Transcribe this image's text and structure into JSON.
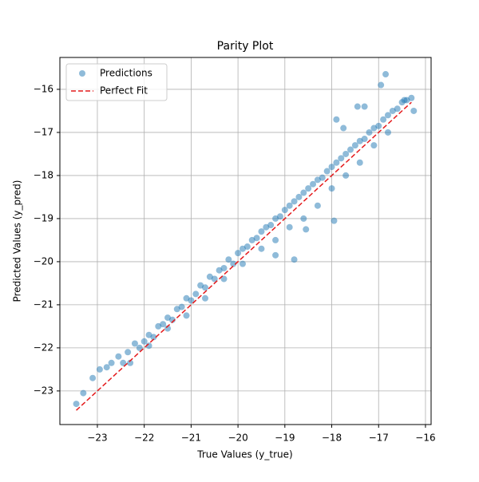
{
  "chart_data": {
    "type": "scatter",
    "title": "Parity Plot",
    "xlabel": "True Values (y_true)",
    "ylabel": "Predicted Values (y_pred)",
    "xlim": [
      -23.8,
      -15.88
    ],
    "ylim": [
      -23.78,
      -15.26
    ],
    "xticks": [
      {
        "value": -23,
        "label": "−23"
      },
      {
        "value": -22,
        "label": "−22"
      },
      {
        "value": -21,
        "label": "−21"
      },
      {
        "value": -20,
        "label": "−20"
      },
      {
        "value": -19,
        "label": "−19"
      },
      {
        "value": -18,
        "label": "−18"
      },
      {
        "value": -17,
        "label": "−17"
      },
      {
        "value": -16,
        "label": "−16"
      }
    ],
    "yticks": [
      {
        "value": -23,
        "label": "−23"
      },
      {
        "value": -22,
        "label": "−22"
      },
      {
        "value": -21,
        "label": "−21"
      },
      {
        "value": -20,
        "label": "−20"
      },
      {
        "value": -19,
        "label": "−19"
      },
      {
        "value": -18,
        "label": "−18"
      },
      {
        "value": -17,
        "label": "−17"
      },
      {
        "value": -16,
        "label": "−16"
      }
    ],
    "grid": true,
    "legend": "upper left",
    "series": [
      {
        "name": "Predictions",
        "color": "#1f77b4",
        "alpha": 0.5,
        "x": [
          -23.45,
          -23.3,
          -23.1,
          -22.95,
          -22.8,
          -22.7,
          -22.55,
          -22.45,
          -22.35,
          -22.2,
          -22.1,
          -22.0,
          -21.9,
          -21.8,
          -21.7,
          -21.6,
          -21.5,
          -21.4,
          -21.3,
          -21.2,
          -21.1,
          -21.0,
          -20.9,
          -20.8,
          -20.7,
          -20.6,
          -20.5,
          -20.4,
          -20.3,
          -20.2,
          -20.1,
          -20.0,
          -19.9,
          -19.8,
          -19.7,
          -19.6,
          -19.5,
          -19.4,
          -19.3,
          -19.2,
          -19.1,
          -19.0,
          -18.9,
          -18.8,
          -18.7,
          -18.6,
          -18.5,
          -18.4,
          -18.3,
          -18.2,
          -18.1,
          -18.0,
          -17.9,
          -17.8,
          -17.7,
          -17.6,
          -17.5,
          -17.4,
          -17.3,
          -17.2,
          -17.1,
          -17.0,
          -16.9,
          -16.8,
          -16.7,
          -16.6,
          -16.5,
          -16.4,
          -16.3,
          -22.3,
          -21.9,
          -21.5,
          -21.1,
          -20.7,
          -20.3,
          -19.9,
          -19.5,
          -19.2,
          -18.9,
          -18.6,
          -18.3,
          -18.0,
          -17.7,
          -17.4,
          -17.1,
          -16.8,
          -16.95,
          -16.85,
          -17.45,
          -17.3,
          -17.9,
          -17.75,
          -18.8,
          -19.2,
          -17.95,
          -18.55,
          -16.25,
          -16.45
        ],
        "y": [
          -23.3,
          -23.05,
          -22.7,
          -22.5,
          -22.45,
          -22.35,
          -22.2,
          -22.35,
          -22.1,
          -21.9,
          -22.0,
          -21.85,
          -21.7,
          -21.75,
          -21.5,
          -21.45,
          -21.3,
          -21.35,
          -21.1,
          -21.05,
          -20.85,
          -20.9,
          -20.75,
          -20.55,
          -20.6,
          -20.35,
          -20.4,
          -20.2,
          -20.15,
          -19.95,
          -20.05,
          -19.8,
          -19.7,
          -19.65,
          -19.5,
          -19.45,
          -19.3,
          -19.2,
          -19.15,
          -19.0,
          -18.95,
          -18.8,
          -18.7,
          -18.6,
          -18.5,
          -18.4,
          -18.3,
          -18.2,
          -18.1,
          -18.05,
          -17.9,
          -17.8,
          -17.7,
          -17.6,
          -17.5,
          -17.4,
          -17.3,
          -17.2,
          -17.15,
          -17.0,
          -16.9,
          -16.85,
          -16.7,
          -16.6,
          -16.5,
          -16.45,
          -16.3,
          -16.25,
          -16.2,
          -22.35,
          -21.95,
          -21.55,
          -21.25,
          -20.85,
          -20.4,
          -20.05,
          -19.7,
          -19.5,
          -19.2,
          -19.0,
          -18.7,
          -18.3,
          -18.0,
          -17.7,
          -17.3,
          -17.0,
          -15.9,
          -15.65,
          -16.4,
          -16.4,
          -16.7,
          -16.9,
          -19.95,
          -19.85,
          -19.05,
          -19.25,
          -16.5,
          -16.25
        ]
      },
      {
        "name": "Perfect Fit",
        "type": "line",
        "color": "#e41a1c",
        "dash": true,
        "x": [
          -23.45,
          -16.3
        ],
        "y": [
          -23.45,
          -16.3
        ]
      }
    ]
  }
}
